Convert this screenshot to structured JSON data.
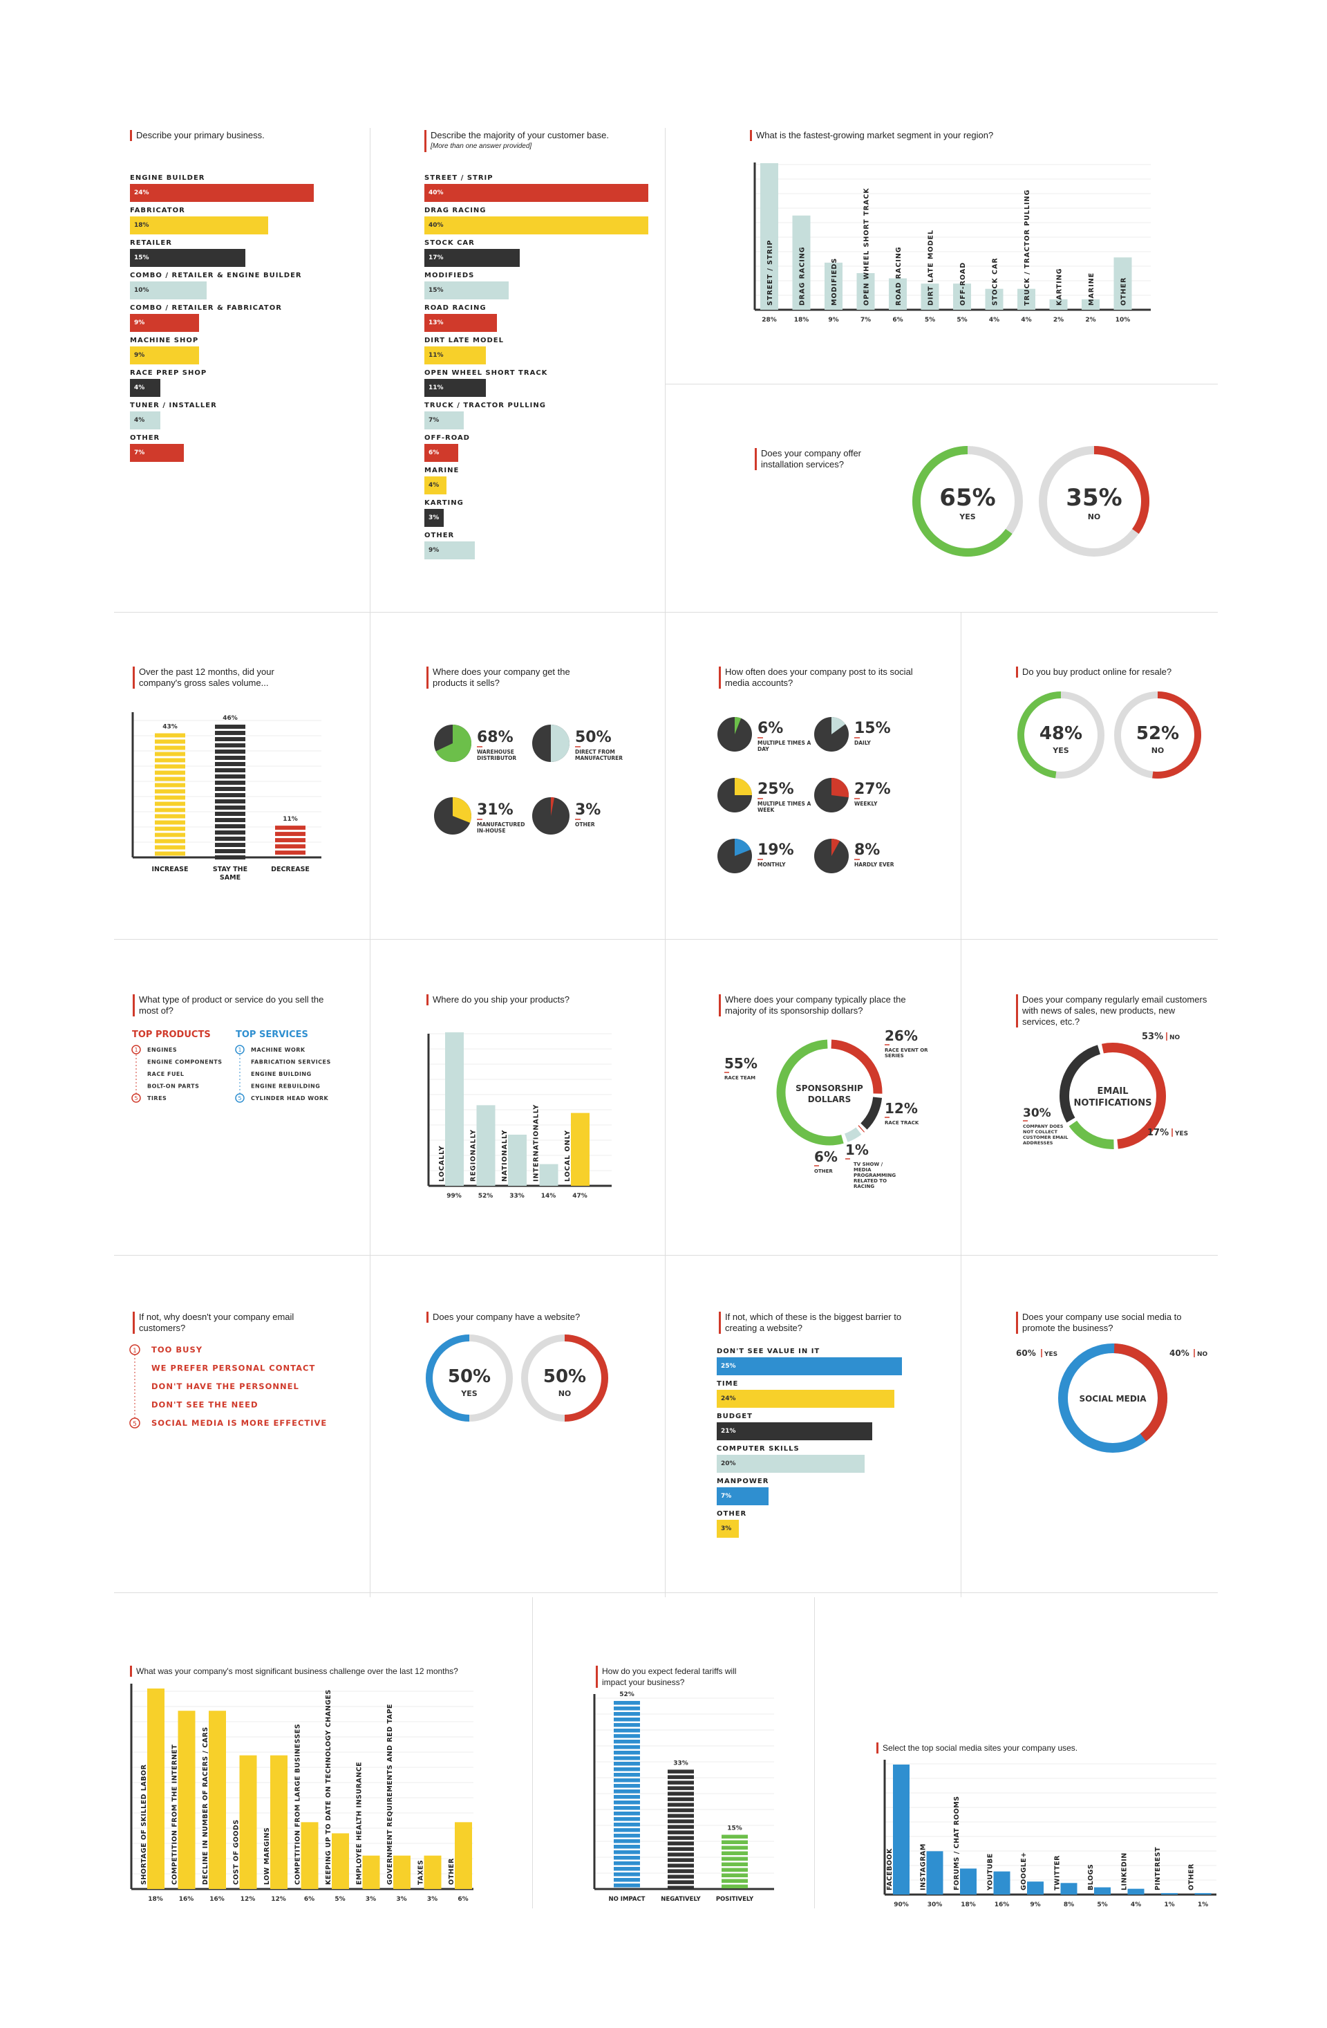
{
  "colors": {
    "red": "#d03a2b",
    "yellow": "#f7d02a",
    "black": "#333333",
    "teal": "#c6dedb",
    "blue": "#2f8fd0",
    "green": "#6cbf4a",
    "gray": "#dcdcdc"
  },
  "q1": {
    "question": "Describe your primary business.",
    "items": [
      {
        "label": "ENGINE BUILDER",
        "value": "24%",
        "pct": 24,
        "color": "red"
      },
      {
        "label": "FABRICATOR",
        "value": "18%",
        "pct": 18,
        "color": "yellow"
      },
      {
        "label": "RETAILER",
        "value": "15%",
        "pct": 15,
        "color": "black"
      },
      {
        "label": "COMBO / RETAILER & ENGINE BUILDER",
        "value": "10%",
        "pct": 10,
        "color": "teal"
      },
      {
        "label": "COMBO / RETAILER & FABRICATOR",
        "value": "9%",
        "pct": 9,
        "color": "red"
      },
      {
        "label": "MACHINE SHOP",
        "value": "9%",
        "pct": 9,
        "color": "yellow"
      },
      {
        "label": "RACE PREP SHOP",
        "value": "4%",
        "pct": 4,
        "color": "black"
      },
      {
        "label": "TUNER / INSTALLER",
        "value": "4%",
        "pct": 4,
        "color": "teal"
      },
      {
        "label": "OTHER",
        "value": "7%",
        "pct": 7,
        "color": "red"
      }
    ]
  },
  "q2": {
    "question": "Describe the majority of your customer base.",
    "note": "[More than one answer provided]",
    "items": [
      {
        "label": "STREET / STRIP",
        "value": "40%",
        "pct": 40,
        "color": "red"
      },
      {
        "label": "DRAG RACING",
        "value": "40%",
        "pct": 40,
        "color": "yellow"
      },
      {
        "label": "STOCK CAR",
        "value": "17%",
        "pct": 17,
        "color": "black"
      },
      {
        "label": "MODIFIEDS",
        "value": "15%",
        "pct": 15,
        "color": "teal"
      },
      {
        "label": "ROAD RACING",
        "value": "13%",
        "pct": 13,
        "color": "red"
      },
      {
        "label": "DIRT LATE MODEL",
        "value": "11%",
        "pct": 11,
        "color": "yellow"
      },
      {
        "label": "OPEN WHEEL SHORT TRACK",
        "value": "11%",
        "pct": 11,
        "color": "black"
      },
      {
        "label": "TRUCK / TRACTOR PULLING",
        "value": "7%",
        "pct": 7,
        "color": "teal"
      },
      {
        "label": "OFF-ROAD",
        "value": "6%",
        "pct": 6,
        "color": "red"
      },
      {
        "label": "MARINE",
        "value": "4%",
        "pct": 4,
        "color": "yellow"
      },
      {
        "label": "KARTING",
        "value": "3%",
        "pct": 3,
        "color": "black"
      },
      {
        "label": "OTHER",
        "value": "9%",
        "pct": 9,
        "color": "teal"
      }
    ]
  },
  "q3": {
    "question": "What is the fastest-growing market segment in your region?",
    "items": [
      {
        "label": "STREET / STRIP",
        "value": "28%",
        "pct": 28
      },
      {
        "label": "DRAG RACING",
        "value": "18%",
        "pct": 18
      },
      {
        "label": "MODIFIEDS",
        "value": "9%",
        "pct": 9
      },
      {
        "label": "OPEN WHEEL SHORT TRACK",
        "value": "7%",
        "pct": 7
      },
      {
        "label": "ROAD RACING",
        "value": "6%",
        "pct": 6
      },
      {
        "label": "DIRT LATE MODEL",
        "value": "5%",
        "pct": 5
      },
      {
        "label": "OFF-ROAD",
        "value": "5%",
        "pct": 5
      },
      {
        "label": "STOCK CAR",
        "value": "4%",
        "pct": 4
      },
      {
        "label": "TRUCK / TRACTOR PULLING",
        "value": "4%",
        "pct": 4
      },
      {
        "label": "KARTING",
        "value": "2%",
        "pct": 2
      },
      {
        "label": "MARINE",
        "value": "2%",
        "pct": 2
      },
      {
        "label": "OTHER",
        "value": "10%",
        "pct": 10
      }
    ]
  },
  "q4": {
    "question": "Does your company offer installation services?",
    "yes": {
      "value": "65%",
      "label": "YES",
      "pct": 65
    },
    "no": {
      "value": "35%",
      "label": "NO",
      "pct": 35
    }
  },
  "q5": {
    "question": "Over the past 12 months, did your company's gross sales volume...",
    "items": [
      {
        "label": "INCREASE",
        "value": "43%",
        "pct": 43
      },
      {
        "label": "STAY THE SAME",
        "value": "46%",
        "pct": 46
      },
      {
        "label": "DECREASE",
        "value": "11%",
        "pct": 11
      }
    ]
  },
  "q6": {
    "question": "Where does your company get the products it sells?",
    "items": [
      {
        "value": "68%",
        "label": "WAREHOUSE DISTRIBUTOR",
        "pct": 68
      },
      {
        "value": "50%",
        "label": "DIRECT FROM MANUFACTURER",
        "pct": 50
      },
      {
        "value": "31%",
        "label": "MANUFACTURED IN-HOUSE",
        "pct": 31
      },
      {
        "value": "3%",
        "label": "OTHER",
        "pct": 3
      }
    ]
  },
  "q7": {
    "question": "How often does your company post to its social media accounts?",
    "items": [
      {
        "value": "6%",
        "label": "MULTIPLE TIMES A DAY",
        "pct": 6
      },
      {
        "value": "15%",
        "label": "DAILY",
        "pct": 15
      },
      {
        "value": "25%",
        "label": "MULTIPLE TIMES A WEEK",
        "pct": 25
      },
      {
        "value": "27%",
        "label": "WEEKLY",
        "pct": 27
      },
      {
        "value": "19%",
        "label": "MONTHLY",
        "pct": 19
      },
      {
        "value": "8%",
        "label": "HARDLY EVER",
        "pct": 8
      }
    ]
  },
  "q8": {
    "question": "Do you buy product online for resale?",
    "yes": {
      "value": "48%",
      "label": "YES",
      "pct": 48
    },
    "no": {
      "value": "52%",
      "label": "NO",
      "pct": 52
    }
  },
  "q9": {
    "question": "What type of product or service do you sell the most of?",
    "products_title": "TOP PRODUCTS",
    "services_title": "TOP SERVICES",
    "products": [
      "ENGINES",
      "ENGINE COMPONENTS",
      "RACE FUEL",
      "BOLT-ON PARTS",
      "TIRES"
    ],
    "services": [
      "MACHINE WORK",
      "FABRICATION SERVICES",
      "ENGINE BUILDING",
      "ENGINE REBUILDING",
      "CYLINDER HEAD WORK"
    ],
    "n1": "1",
    "n5": "5"
  },
  "q10": {
    "question": "Where do you ship your products?",
    "items": [
      {
        "label": "LOCALLY",
        "value": "99%",
        "pct": 99
      },
      {
        "label": "REGIONALLY",
        "value": "52%",
        "pct": 52
      },
      {
        "label": "NATIONALLY",
        "value": "33%",
        "pct": 33
      },
      {
        "label": "INTERNATIONALLY",
        "value": "14%",
        "pct": 14
      },
      {
        "label": "LOCAL ONLY",
        "value": "47%",
        "pct": 47
      }
    ]
  },
  "q11": {
    "question": "Where does your company typically place the majority of its sponsorship dollars?",
    "center": [
      "SPONSORSHIP",
      "DOLLARS"
    ],
    "items": [
      {
        "value": "55%",
        "label": "RACE TEAM",
        "pct": 55
      },
      {
        "value": "26%",
        "label": "RACE EVENT OR SERIES",
        "pct": 26
      },
      {
        "value": "12%",
        "label": "RACE TRACK",
        "pct": 12
      },
      {
        "value": "1%",
        "label": "TV SHOW / MEDIA PROGRAMMING RELATED TO RACING",
        "pct": 1
      },
      {
        "value": "6%",
        "label": "OTHER",
        "pct": 6
      }
    ]
  },
  "q12": {
    "question": "Does your company regularly email customers with news of sales, new products, new services, etc.?",
    "center": [
      "EMAIL",
      "NOTIFICATIONS"
    ],
    "no": {
      "value": "53%",
      "label": "NO",
      "pct": 53
    },
    "yes": {
      "value": "17%",
      "label": "YES",
      "pct": 17
    },
    "other": {
      "value": "30%",
      "label": "COMPANY DOES NOT COLLECT CUSTOMER EMAIL ADDRESSES",
      "pct": 30
    }
  },
  "q13": {
    "question": "If not, why doesn't your company email customers?",
    "items": [
      "TOO BUSY",
      "WE PREFER PERSONAL CONTACT",
      "DON'T HAVE THE PERSONNEL",
      "DON'T SEE THE NEED",
      "SOCIAL MEDIA IS MORE EFFECTIVE"
    ],
    "n1": "1",
    "n5": "5"
  },
  "q14": {
    "question": "Does your company have a website?",
    "yes": {
      "value": "50%",
      "label": "YES",
      "pct": 50
    },
    "no": {
      "value": "50%",
      "label": "NO",
      "pct": 50
    }
  },
  "q15": {
    "question": "If not, which of these is the biggest barrier to creating a website?",
    "items": [
      {
        "label": "DON'T SEE VALUE IN IT",
        "value": "25%",
        "pct": 25,
        "color": "blue"
      },
      {
        "label": "TIME",
        "value": "24%",
        "pct": 24,
        "color": "yellow"
      },
      {
        "label": "BUDGET",
        "value": "21%",
        "pct": 21,
        "color": "black"
      },
      {
        "label": "COMPUTER SKILLS",
        "value": "20%",
        "pct": 20,
        "color": "teal"
      },
      {
        "label": "MANPOWER",
        "value": "7%",
        "pct": 7,
        "color": "blue"
      },
      {
        "label": "OTHER",
        "value": "3%",
        "pct": 3,
        "color": "yellow"
      }
    ]
  },
  "q16": {
    "question": "Does your company use social media to promote the business?",
    "center": "SOCIAL MEDIA",
    "yes": {
      "value": "60%",
      "label": "YES",
      "pct": 60
    },
    "no": {
      "value": "40%",
      "label": "NO",
      "pct": 40
    }
  },
  "q17": {
    "question": "What was your company's most significant business challenge over the last 12 months?",
    "items": [
      {
        "label": "SHORTAGE OF SKILLED LABOR",
        "value": "18%",
        "pct": 18
      },
      {
        "label": "COMPETITION FROM THE INTERNET",
        "value": "16%",
        "pct": 16
      },
      {
        "label": "DECLINE IN NUMBER OF RACERS / CARS",
        "value": "16%",
        "pct": 16
      },
      {
        "label": "COST OF GOODS",
        "value": "12%",
        "pct": 12
      },
      {
        "label": "LOW MARGINS",
        "value": "12%",
        "pct": 12
      },
      {
        "label": "COMPETITION FROM LARGE BUSINESSES",
        "value": "6%",
        "pct": 6
      },
      {
        "label": "KEEPING UP TO DATE ON TECHNOLOGY CHANGES",
        "value": "5%",
        "pct": 5
      },
      {
        "label": "EMPLOYEE HEALTH INSURANCE",
        "value": "3%",
        "pct": 3
      },
      {
        "label": "GOVERNMENT REQUIREMENTS AND RED TAPE",
        "value": "3%",
        "pct": 3
      },
      {
        "label": "TAXES",
        "value": "3%",
        "pct": 3
      },
      {
        "label": "OTHER",
        "value": "6%",
        "pct": 6
      }
    ]
  },
  "q18": {
    "question": "How do you expect federal tariffs will impact your business?",
    "items": [
      {
        "label": "NO IMPACT",
        "value": "52%",
        "pct": 52
      },
      {
        "label": "NEGATIVELY",
        "value": "33%",
        "pct": 33
      },
      {
        "label": "POSITIVELY",
        "value": "15%",
        "pct": 15
      }
    ]
  },
  "q19": {
    "question": "Select the top social media sites your company uses.",
    "items": [
      {
        "label": "FACEBOOK",
        "value": "90%",
        "pct": 90
      },
      {
        "label": "INSTAGRAM",
        "value": "30%",
        "pct": 30
      },
      {
        "label": "FORUMS / CHAT ROOMS",
        "value": "18%",
        "pct": 18
      },
      {
        "label": "YOUTUBE",
        "value": "16%",
        "pct": 16
      },
      {
        "label": "GOOGLE+",
        "value": "9%",
        "pct": 9
      },
      {
        "label": "TWITTER",
        "value": "8%",
        "pct": 8
      },
      {
        "label": "BLOGS",
        "value": "5%",
        "pct": 5
      },
      {
        "label": "LINKEDIN",
        "value": "4%",
        "pct": 4
      },
      {
        "label": "PINTEREST",
        "value": "1%",
        "pct": 1
      },
      {
        "label": "OTHER",
        "value": "1%",
        "pct": 1
      }
    ]
  },
  "chart_data": [
    {
      "type": "bar",
      "title": "Describe your primary business.",
      "categories": [
        "ENGINE BUILDER",
        "FABRICATOR",
        "RETAILER",
        "COMBO / RETAILER & ENGINE BUILDER",
        "COMBO / RETAILER & FABRICATOR",
        "MACHINE SHOP",
        "RACE PREP SHOP",
        "TUNER / INSTALLER",
        "OTHER"
      ],
      "values": [
        24,
        18,
        15,
        10,
        9,
        9,
        4,
        4,
        7
      ]
    },
    {
      "type": "bar",
      "title": "Describe the majority of your customer base.",
      "categories": [
        "STREET / STRIP",
        "DRAG RACING",
        "STOCK CAR",
        "MODIFIEDS",
        "ROAD RACING",
        "DIRT LATE MODEL",
        "OPEN WHEEL SHORT TRACK",
        "TRUCK / TRACTOR PULLING",
        "OFF-ROAD",
        "MARINE",
        "KARTING",
        "OTHER"
      ],
      "values": [
        40,
        40,
        17,
        15,
        13,
        11,
        11,
        7,
        6,
        4,
        3,
        9
      ]
    },
    {
      "type": "bar",
      "title": "What is the fastest-growing market segment in your region?",
      "categories": [
        "STREET / STRIP",
        "DRAG RACING",
        "MODIFIEDS",
        "OPEN WHEEL SHORT TRACK",
        "ROAD RACING",
        "DIRT LATE MODEL",
        "OFF-ROAD",
        "STOCK CAR",
        "TRUCK / TRACTOR PULLING",
        "KARTING",
        "MARINE",
        "OTHER"
      ],
      "values": [
        28,
        18,
        9,
        7,
        6,
        5,
        5,
        4,
        4,
        2,
        2,
        10
      ]
    },
    {
      "type": "pie",
      "title": "Does your company offer installation services?",
      "categories": [
        "YES",
        "NO"
      ],
      "values": [
        65,
        35
      ]
    },
    {
      "type": "bar",
      "title": "Over the past 12 months, did your company's gross sales volume...",
      "categories": [
        "INCREASE",
        "STAY THE SAME",
        "DECREASE"
      ],
      "values": [
        43,
        46,
        11
      ]
    },
    {
      "type": "pie",
      "title": "Where does your company get the products it sells?",
      "categories": [
        "WAREHOUSE DISTRIBUTOR",
        "DIRECT FROM MANUFACTURER",
        "MANUFACTURED IN-HOUSE",
        "OTHER"
      ],
      "values": [
        68,
        50,
        31,
        3
      ]
    },
    {
      "type": "pie",
      "title": "How often does your company post to its social media accounts?",
      "categories": [
        "MULTIPLE TIMES A DAY",
        "DAILY",
        "MULTIPLE TIMES A WEEK",
        "WEEKLY",
        "MONTHLY",
        "HARDLY EVER"
      ],
      "values": [
        6,
        15,
        25,
        27,
        19,
        8
      ]
    },
    {
      "type": "pie",
      "title": "Do you buy product online for resale?",
      "categories": [
        "YES",
        "NO"
      ],
      "values": [
        48,
        52
      ]
    },
    {
      "type": "bar",
      "title": "Where do you ship your products?",
      "categories": [
        "LOCALLY",
        "REGIONALLY",
        "NATIONALLY",
        "INTERNATIONALLY",
        "LOCAL ONLY"
      ],
      "values": [
        99,
        52,
        33,
        14,
        47
      ]
    },
    {
      "type": "pie",
      "title": "Where does your company typically place the majority of its sponsorship dollars?",
      "categories": [
        "RACE TEAM",
        "RACE EVENT OR SERIES",
        "RACE TRACK",
        "TV SHOW / MEDIA PROGRAMMING RELATED TO RACING",
        "OTHER"
      ],
      "values": [
        55,
        26,
        12,
        1,
        6
      ]
    },
    {
      "type": "pie",
      "title": "Does your company regularly email customers with news of sales, new products, new services, etc.?",
      "categories": [
        "NO",
        "YES",
        "COMPANY DOES NOT COLLECT CUSTOMER EMAIL ADDRESSES"
      ],
      "values": [
        53,
        17,
        30
      ]
    },
    {
      "type": "pie",
      "title": "Does your company have a website?",
      "categories": [
        "YES",
        "NO"
      ],
      "values": [
        50,
        50
      ]
    },
    {
      "type": "bar",
      "title": "If not, which of these is the biggest barrier to creating a website?",
      "categories": [
        "DON'T SEE VALUE IN IT",
        "TIME",
        "BUDGET",
        "COMPUTER SKILLS",
        "MANPOWER",
        "OTHER"
      ],
      "values": [
        25,
        24,
        21,
        20,
        7,
        3
      ]
    },
    {
      "type": "pie",
      "title": "Does your company use social media to promote the business?",
      "categories": [
        "YES",
        "NO"
      ],
      "values": [
        60,
        40
      ]
    },
    {
      "type": "bar",
      "title": "What was your company's most significant business challenge over the last 12 months?",
      "categories": [
        "SHORTAGE OF SKILLED LABOR",
        "COMPETITION FROM THE INTERNET",
        "DECLINE IN NUMBER OF RACERS / CARS",
        "COST OF GOODS",
        "LOW MARGINS",
        "COMPETITION FROM LARGE BUSINESSES",
        "KEEPING UP TO DATE ON TECHNOLOGY CHANGES",
        "EMPLOYEE HEALTH INSURANCE",
        "GOVERNMENT REQUIREMENTS AND RED TAPE",
        "TAXES",
        "OTHER"
      ],
      "values": [
        18,
        16,
        16,
        12,
        12,
        6,
        5,
        3,
        3,
        3,
        6
      ]
    },
    {
      "type": "bar",
      "title": "How do you expect federal tariffs will impact your business?",
      "categories": [
        "NO IMPACT",
        "NEGATIVELY",
        "POSITIVELY"
      ],
      "values": [
        52,
        33,
        15
      ]
    },
    {
      "type": "bar",
      "title": "Select the top social media sites your company uses.",
      "categories": [
        "FACEBOOK",
        "INSTAGRAM",
        "FORUMS / CHAT ROOMS",
        "YOUTUBE",
        "GOOGLE+",
        "TWITTER",
        "BLOGS",
        "LINKEDIN",
        "PINTEREST",
        "OTHER"
      ],
      "values": [
        90,
        30,
        18,
        16,
        9,
        8,
        5,
        4,
        1,
        1
      ]
    }
  ]
}
